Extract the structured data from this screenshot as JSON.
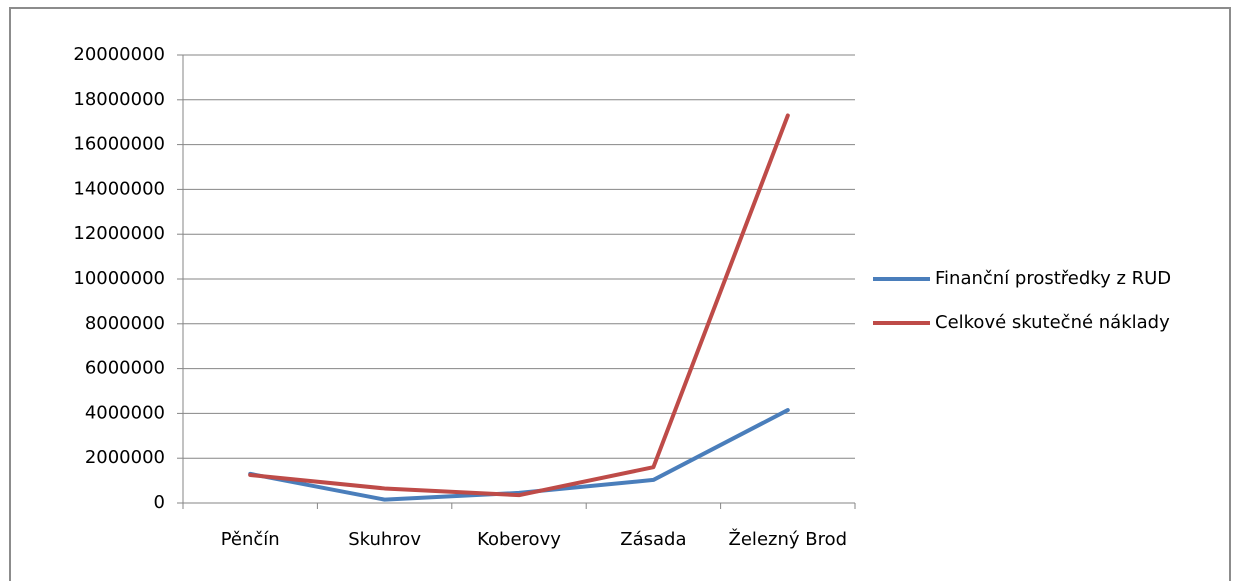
{
  "chart_data": {
    "type": "line",
    "categories": [
      "Pěnčín",
      "Skuhrov",
      "Koberovy",
      "Zásada",
      "Železný Brod"
    ],
    "series": [
      {
        "name": "Finanční prostředky z RUD",
        "color": "#4a7ebb",
        "values": [
          1300000,
          150000,
          450000,
          1030000,
          4150000
        ]
      },
      {
        "name": "Celkové skutečné náklady",
        "color": "#be4b48",
        "values": [
          1250000,
          650000,
          350000,
          1600000,
          17300000
        ]
      }
    ],
    "ylim": [
      0,
      20000000
    ],
    "yticks": [
      0,
      2000000,
      4000000,
      6000000,
      8000000,
      10000000,
      12000000,
      14000000,
      16000000,
      18000000,
      20000000
    ],
    "grid": true,
    "legend": "right"
  }
}
